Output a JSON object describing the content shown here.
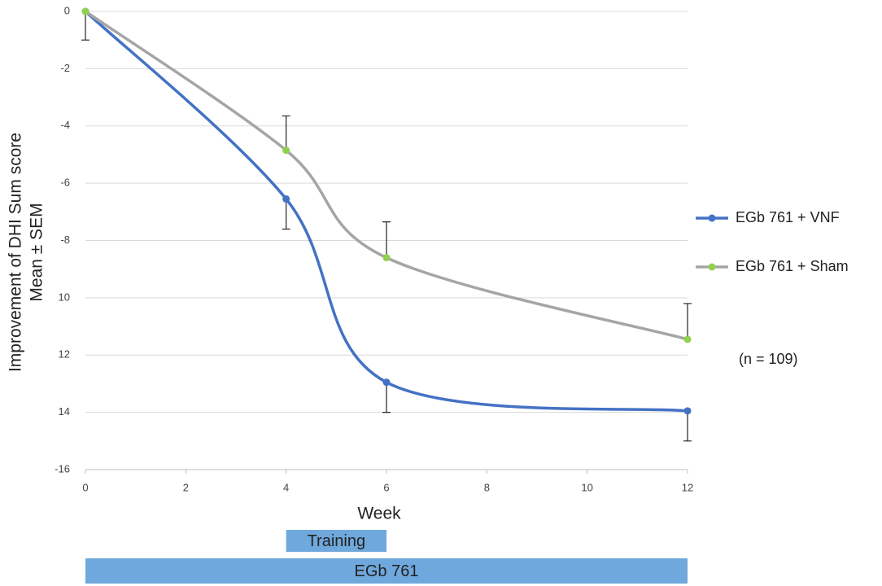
{
  "chart_data": {
    "type": "line",
    "ylabel": [
      "Improvement of DHI Sum score",
      "Mean ± SEM"
    ],
    "xlabel": "Week",
    "x": [
      0,
      4,
      6,
      12
    ],
    "series": [
      {
        "name": "EGb 761 + VNF",
        "color": "#4472c4",
        "marker_color": "#4472c4",
        "values": [
          0,
          -6.55,
          -12.95,
          -13.95
        ],
        "errors": [
          1,
          1.05,
          1.05,
          1.05
        ],
        "error_direction": "down"
      },
      {
        "name": "EGb 761 + Sham",
        "color": "#a5a5a5",
        "marker_color": "#92d050",
        "values": [
          0,
          -4.85,
          -8.6,
          -11.45
        ],
        "errors": [
          null,
          1.2,
          1.25,
          1.25
        ],
        "error_direction": "up"
      }
    ],
    "xlim": [
      0,
      12
    ],
    "xticks": [
      0,
      2,
      4,
      6,
      8,
      10,
      12
    ],
    "ylim": [
      -16,
      0
    ],
    "yticks": [
      0,
      -2,
      -4,
      -6,
      -8,
      {
        "value": -10,
        "label": "10"
      },
      {
        "value": -12,
        "label": "12"
      },
      {
        "value": -14,
        "label": "14"
      },
      -16
    ],
    "grid": true,
    "smooth": true,
    "legend": "right",
    "annotation": "(n = 109)",
    "phases": [
      {
        "label": "Training",
        "start": 4,
        "end": 6,
        "color": "#6fa8dc"
      },
      {
        "label": "EGb 761",
        "start": 0,
        "end": 12,
        "color": "#6fa8dc"
      }
    ]
  }
}
